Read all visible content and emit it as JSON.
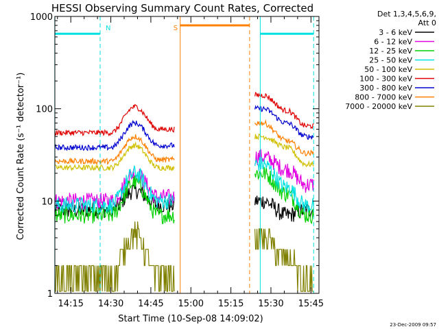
{
  "chart_data": {
    "type": "line",
    "title": "HESSI Observing Summary Count Rates, Corrected",
    "xlabel": "Start Time (10-Sep-08 14:09:02)",
    "ylabel": "Corrected Count Rate (s⁻¹ detector⁻¹)",
    "yscale": "log",
    "ylim": [
      1,
      1000
    ],
    "xlim": [
      "14:09:02",
      "15:48:00"
    ],
    "x_ticks": [
      "14:15",
      "14:30",
      "14:45",
      "15:00",
      "15:15",
      "15:30",
      "15:45"
    ],
    "y_ticks": [
      "1",
      "10",
      "100",
      "1000"
    ],
    "grid": false,
    "legend_header": [
      "Det 1,3,4,5,6,9,",
      "Att 0"
    ],
    "legend_position": "right",
    "footer_date": "23-Dec-2009 09:57",
    "series": [
      {
        "name": "3 - 6 keV",
        "color": "#000000",
        "values": [
          [
            14.5,
            8
          ],
          [
            14.65,
            13
          ],
          [
            14.8,
            9
          ],
          [
            15.45,
            10
          ],
          [
            15.6,
            7
          ],
          [
            15.72,
            8
          ]
        ]
      },
      {
        "name": "6 - 12 keV",
        "color": "#e000e0",
        "values": [
          [
            14.5,
            10
          ],
          [
            14.65,
            20
          ],
          [
            14.8,
            11
          ],
          [
            15.45,
            30
          ],
          [
            15.6,
            22
          ],
          [
            15.72,
            15
          ]
        ]
      },
      {
        "name": "12 - 25 keV",
        "color": "#00d000",
        "values": [
          [
            14.5,
            7
          ],
          [
            14.65,
            16
          ],
          [
            14.8,
            7
          ],
          [
            15.45,
            20
          ],
          [
            15.6,
            12
          ],
          [
            15.72,
            7
          ]
        ]
      },
      {
        "name": "25 - 50 keV",
        "color": "#00e0e0",
        "values": [
          [
            14.5,
            9
          ],
          [
            14.65,
            20
          ],
          [
            14.8,
            10
          ],
          [
            15.45,
            25
          ],
          [
            15.6,
            14
          ],
          [
            15.72,
            9
          ]
        ]
      },
      {
        "name": "50 - 100 keV",
        "color": "#d0c000",
        "values": [
          [
            14.5,
            23
          ],
          [
            14.65,
            40
          ],
          [
            14.8,
            23
          ],
          [
            15.45,
            50
          ],
          [
            15.6,
            38
          ],
          [
            15.72,
            25
          ]
        ]
      },
      {
        "name": "100 - 300 keV",
        "color": "#e00000",
        "values": [
          [
            14.5,
            55
          ],
          [
            14.65,
            105
          ],
          [
            14.8,
            60
          ],
          [
            15.45,
            140
          ],
          [
            15.6,
            95
          ],
          [
            15.72,
            65
          ]
        ]
      },
      {
        "name": "300 - 800 keV",
        "color": "#0000d0",
        "values": [
          [
            14.5,
            38
          ],
          [
            14.65,
            70
          ],
          [
            14.8,
            40
          ],
          [
            15.45,
            100
          ],
          [
            15.6,
            70
          ],
          [
            15.72,
            50
          ]
        ]
      },
      {
        "name": "800 - 7000 keV",
        "color": "#ff8000",
        "values": [
          [
            14.5,
            27
          ],
          [
            14.65,
            50
          ],
          [
            14.8,
            28
          ],
          [
            15.45,
            70
          ],
          [
            15.6,
            45
          ],
          [
            15.72,
            33
          ]
        ]
      },
      {
        "name": "7000 - 20000 keV",
        "color": "#808000",
        "values": [
          [
            14.5,
            1.5
          ],
          [
            14.65,
            4.5
          ],
          [
            14.8,
            1.5
          ],
          [
            15.45,
            4
          ],
          [
            15.6,
            2.5
          ],
          [
            15.72,
            1.3
          ]
        ]
      }
    ],
    "annotations": [
      {
        "label": "N",
        "color": "#00e0e0",
        "interval": [
          "14:09",
          "14:26"
        ],
        "level": 650
      },
      {
        "label": "S",
        "color": "#ff8000",
        "interval": [
          "14:56",
          "15:22"
        ],
        "level": 800
      },
      {
        "label": "",
        "color": "#00e0e0",
        "interval": [
          "15:26",
          "15:46"
        ],
        "level": 650
      }
    ]
  }
}
